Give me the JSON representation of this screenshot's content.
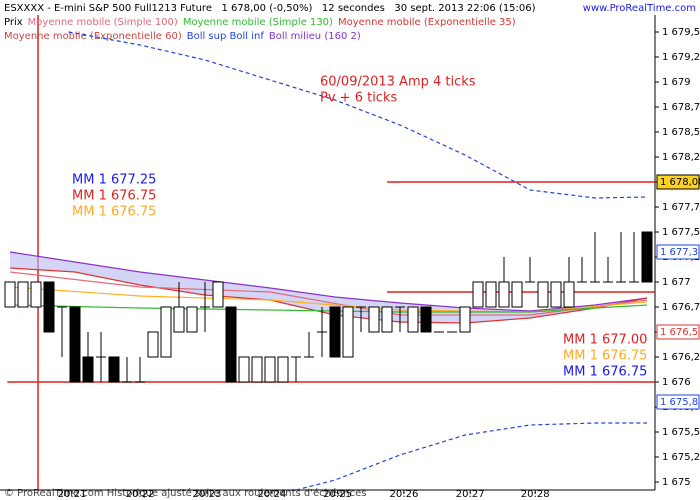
{
  "chart_data": {
    "type": "candlestick",
    "title": "ESXXXX - E-mini S&P 500 Full1213 Future   1 678,00 (-0,50%)   12 secondes   30 sept. 2013 22:06 (15:06)",
    "site": "www.ProRealTime.com",
    "footer": "© ProRealTime.com Historique ajusté suite aux roulements d'échéances",
    "legend": [
      {
        "name": "Prix",
        "color": "#000000"
      },
      {
        "name": "Moyenne mobile (Simple 100)",
        "color": "#e06a7a"
      },
      {
        "name": "Moyenne mobile (Simple 130)",
        "color": "#33bb33"
      },
      {
        "name": "Moyenne mobile (Exponentielle 35)",
        "color": "#dd3333"
      },
      {
        "name": "Moyenne mobile (Exponentielle 60)",
        "color": "#cc4444"
      },
      {
        "name": "Boll sup Boll inf",
        "color": "#2244dd"
      },
      {
        "name": "Boll milieu (160 2)",
        "color": "#8833cc"
      }
    ],
    "ylim": [
      1674.92,
      1679.67
    ],
    "yticks": [
      {
        "value": 1675,
        "label": "1 675"
      },
      {
        "value": 1675.25,
        "label": "1 675,25"
      },
      {
        "value": 1675.5,
        "label": "1 675,5"
      },
      {
        "value": 1675.75,
        "label": "1 675,75"
      },
      {
        "value": 1676,
        "label": "1 676"
      },
      {
        "value": 1676.25,
        "label": "1 676,25"
      },
      {
        "value": 1676.5,
        "label": "1 676,5"
      },
      {
        "value": 1676.75,
        "label": "1 676,75"
      },
      {
        "value": 1677,
        "label": "1 677"
      },
      {
        "value": 1677.25,
        "label": "1 677,25"
      },
      {
        "value": 1677.5,
        "label": "1 677,5"
      },
      {
        "value": 1677.75,
        "label": "1 677,75"
      },
      {
        "value": 1678,
        "label": "1 678"
      },
      {
        "value": 1678.25,
        "label": "1 678,25"
      },
      {
        "value": 1678.5,
        "label": "1 678,5"
      },
      {
        "value": 1678.75,
        "label": "1 678,75"
      },
      {
        "value": 1679,
        "label": "1 679"
      },
      {
        "value": 1679.25,
        "label": "1 679,25"
      },
      {
        "value": 1679.5,
        "label": "1 679,5"
      }
    ],
    "xticks": [
      {
        "value": 4.77,
        "label": "20:21"
      },
      {
        "value": 10,
        "label": "20:22"
      },
      {
        "value": 15.15,
        "label": "20:23"
      },
      {
        "value": 20.15,
        "label": "20:24"
      },
      {
        "value": 25.2,
        "label": "20:25"
      },
      {
        "value": 30.3,
        "label": "20:26"
      },
      {
        "value": 35.4,
        "label": "20:27"
      },
      {
        "value": 40.4,
        "label": "20:28"
      }
    ],
    "candles": {
      "open": [
        1676.75,
        1676.75,
        1676.75,
        1677,
        1676.75,
        1676.75,
        1676.25,
        1676.25,
        1676.25,
        1676,
        1676,
        1676.25,
        1676.25,
        1676.5,
        1676.5,
        1676.75,
        1676.75,
        1676.75,
        1676,
        1676,
        1676,
        1676,
        1676.25,
        1676.25,
        1676.5,
        1676.75,
        1676.25,
        1676.75,
        1676.5,
        1676.5,
        1676.75,
        1676.5,
        1676.75,
        1676.5,
        1676.5,
        1676.5,
        1676.75,
        1676.75,
        1676.75,
        1676.75,
        1677,
        1676.75,
        1676.75,
        1676.75,
        1677,
        1677,
        1677,
        1677,
        1677,
        1677.5
      ],
      "high": [
        1677,
        1677,
        1677,
        1677,
        1676.75,
        1676.75,
        1676.5,
        1676.5,
        1676.25,
        1676.25,
        1676.25,
        1676.5,
        1676.75,
        1677,
        1676.75,
        1677,
        1677,
        1676.75,
        1676.25,
        1676.25,
        1676.25,
        1676.25,
        1676.25,
        1676.5,
        1676.75,
        1676.75,
        1676.75,
        1676.75,
        1676.75,
        1676.75,
        1676.75,
        1676.75,
        1676.75,
        1676.5,
        1676.5,
        1676.75,
        1677,
        1677,
        1677.25,
        1677,
        1677.25,
        1677,
        1677,
        1677.25,
        1677.25,
        1677.5,
        1677.25,
        1677.5,
        1677.5,
        1677.5
      ],
      "low": [
        1676.75,
        1676.75,
        1676.75,
        1676.5,
        1676.25,
        1676,
        1676,
        1676,
        1676,
        1676,
        1676,
        1676.25,
        1676.25,
        1676.5,
        1676.5,
        1676.5,
        1676.75,
        1676,
        1676,
        1676,
        1676,
        1676,
        1676,
        1676.25,
        1676.25,
        1676.25,
        1676.25,
        1676.5,
        1676.5,
        1676.5,
        1676.5,
        1676.5,
        1676.5,
        1676.5,
        1676.5,
        1676.5,
        1676.75,
        1676.75,
        1676.75,
        1676.75,
        1677,
        1676.75,
        1676.75,
        1676.75,
        1677,
        1677,
        1677,
        1677,
        1677,
        1677
      ],
      "close": [
        1677,
        1677,
        1677,
        1676.5,
        1676.75,
        1676,
        1676,
        1676.25,
        1676,
        1676,
        1676,
        1676.5,
        1676.75,
        1676.75,
        1676.75,
        1676.75,
        1677,
        1676,
        1676.25,
        1676.25,
        1676.25,
        1676.25,
        1676.25,
        1676.25,
        1676.5,
        1676.25,
        1676.75,
        1676.75,
        1676.75,
        1676.75,
        1676.75,
        1676.75,
        1676.5,
        1676.5,
        1676.5,
        1676.75,
        1677,
        1677,
        1677,
        1677,
        1677,
        1677,
        1677,
        1677,
        1677,
        1677,
        1677,
        1677,
        1677,
        1677
      ]
    },
    "series": [
      {
        "color": "#2244dd",
        "dash": true,
        "x": [
          4.5,
          10,
          15,
          20,
          25,
          30,
          35,
          40,
          45,
          49
        ],
        "values": [
          1679.5,
          1679.37,
          1679.22,
          1679.02,
          1678.82,
          1678.57,
          1678.27,
          1677.92,
          1677.84,
          1677.85
        ]
      },
      {
        "color": "#2244dd",
        "dash": true,
        "x": [
          22,
          25,
          30,
          35,
          40,
          45,
          49
        ],
        "values": [
          1674.92,
          1675.02,
          1675.27,
          1675.47,
          1675.57,
          1675.59,
          1675.59
        ]
      },
      {
        "color": "#8833cc",
        "x": [
          0,
          5,
          10,
          15,
          20,
          25,
          30,
          35,
          40,
          45,
          49
        ],
        "values": [
          1677.3,
          1677.2,
          1677.1,
          1677.02,
          1676.94,
          1676.85,
          1676.79,
          1676.74,
          1676.71,
          1676.77,
          1676.84
        ]
      },
      {
        "color": "#dd3333",
        "x": [
          0,
          5,
          10,
          15,
          20,
          25,
          30,
          35,
          40,
          45,
          49
        ],
        "values": [
          1677.14,
          1677.1,
          1676.97,
          1676.87,
          1676.82,
          1676.67,
          1676.6,
          1676.59,
          1676.64,
          1676.74,
          1676.84
        ]
      },
      {
        "color": "#e06a7a",
        "x": [
          0,
          10,
          20,
          30,
          40,
          49
        ],
        "values": [
          1677.1,
          1676.95,
          1676.9,
          1676.67,
          1676.67,
          1676.82
        ]
      },
      {
        "color": "#ffb020",
        "x": [
          0,
          10,
          20,
          30,
          40,
          49
        ],
        "values": [
          1676.95,
          1676.86,
          1676.82,
          1676.72,
          1676.7,
          1676.8
        ]
      },
      {
        "color": "#33bb33",
        "x": [
          0,
          10,
          20,
          30,
          40,
          49
        ],
        "values": [
          1676.77,
          1676.74,
          1676.72,
          1676.7,
          1676.7,
          1676.77
        ]
      }
    ],
    "hlines": [
      1678,
      1676.9,
      1676
    ],
    "price_markers": [
      {
        "value": 1678,
        "label": "1 678,00",
        "color": "#000000",
        "bg": "#ffd21f"
      },
      {
        "value": 1677.3,
        "label": "1 677,3",
        "color": "#2244dd",
        "bg": "#ffffff"
      },
      {
        "value": 1676.5,
        "label": "1 676,5",
        "color": "#dd3333",
        "bg": "#ffffff"
      },
      {
        "value": 1675.8,
        "label": "1 675,8",
        "color": "#2244dd",
        "bg": "#ffffff"
      }
    ],
    "annotations": [
      "60/09/2013 Amp 4 ticks",
      "Pv + 6 ticks"
    ],
    "mm_left": [
      {
        "text": "MM 1 677.25",
        "color": "#1a1aee"
      },
      {
        "text": "MM 1 676.75",
        "color": "#e02020"
      },
      {
        "text": "MM 1 676.75",
        "color": "#ffaa22"
      }
    ],
    "mm_right": [
      {
        "text": "MM 1 677.00",
        "color": "#e02020"
      },
      {
        "text": "MM 1 676.75",
        "color": "#ffaa22"
      },
      {
        "text": "MM 1 676.75",
        "color": "#1a1aee"
      }
    ]
  }
}
